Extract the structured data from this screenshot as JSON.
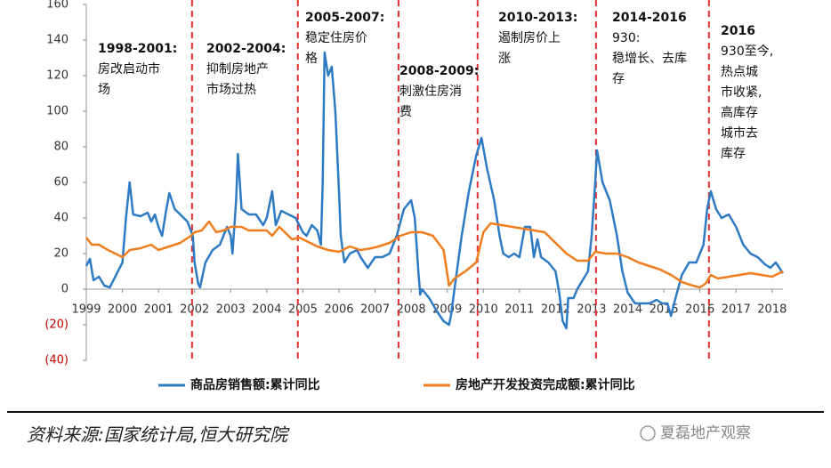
{
  "chart_data": {
    "type": "line",
    "xlim": [
      1999,
      2018.3
    ],
    "ylim": [
      -40,
      160
    ],
    "xticks": [
      1999,
      2000,
      2001,
      2002,
      2003,
      2004,
      2005,
      2006,
      2007,
      2008,
      2009,
      2010,
      2011,
      2012,
      2013,
      2014,
      2015,
      2016,
      2017,
      2018
    ],
    "yticks": [
      {
        "value": -40,
        "label": "(40)"
      },
      {
        "value": -20,
        "label": "(20)"
      },
      0,
      20,
      40,
      60,
      80,
      100,
      120,
      140,
      160
    ],
    "negative_label_color": "#c00000",
    "dividers": [
      2001.93,
      2004.86,
      2007.65,
      2009.84,
      2013.12,
      2016.25
    ],
    "divider_color": "#e03030",
    "annotations": [
      {
        "title": "1998-2001:",
        "lines": [
          "房改启动市",
          "场"
        ]
      },
      {
        "title": "2002-2004:",
        "lines": [
          "抑制房地产",
          "市场过热"
        ]
      },
      {
        "title": "2005-2007:",
        "lines": [
          "稳定住房价",
          "格"
        ]
      },
      {
        "title": "2008-2009:",
        "lines": [
          "刺激住房消",
          "费"
        ]
      },
      {
        "title": "2010-2013:",
        "lines": [
          "遏制房价上",
          "涨"
        ]
      },
      {
        "title": "2014-2016",
        "lines": [
          "930:",
          "稳增长、去库",
          "存"
        ]
      },
      {
        "title": "2016",
        "lines": [
          "930至今,",
          "热点城",
          "市收紧,",
          "高库存",
          "城市去",
          "库存"
        ]
      }
    ],
    "series": [
      {
        "name": "商品房销售额:累计同比",
        "color": "#2e7bc4",
        "x": [
          1999.0,
          1999.1,
          1999.2,
          1999.35,
          1999.5,
          1999.65,
          1999.8,
          2000.0,
          2000.1,
          2000.2,
          2000.3,
          2000.5,
          2000.7,
          2000.8,
          2000.9,
          2001.0,
          2001.1,
          2001.2,
          2001.3,
          2001.45,
          2001.6,
          2001.8,
          2001.95,
          2002.0,
          2002.1,
          2002.15,
          2002.3,
          2002.5,
          2002.7,
          2002.9,
          2003.0,
          2003.05,
          2003.15,
          2003.2,
          2003.3,
          2003.5,
          2003.7,
          2003.9,
          2004.0,
          2004.15,
          2004.25,
          2004.4,
          2004.6,
          2004.8,
          2005.0,
          2005.1,
          2005.25,
          2005.4,
          2005.5,
          2005.55,
          2005.6,
          2005.7,
          2005.8,
          2005.9,
          2006.0,
          2006.05,
          2006.15,
          2006.3,
          2006.5,
          2006.6,
          2006.8,
          2007.0,
          2007.2,
          2007.4,
          2007.6,
          2007.8,
          2008.0,
          2008.1,
          2008.2,
          2008.25,
          2008.3,
          2008.5,
          2008.7,
          2008.9,
          2009.05,
          2009.1,
          2009.2,
          2009.4,
          2009.6,
          2009.8,
          2009.95,
          2010.1,
          2010.3,
          2010.45,
          2010.55,
          2010.7,
          2010.85,
          2011.0,
          2011.15,
          2011.3,
          2011.4,
          2011.5,
          2011.6,
          2011.8,
          2012.0,
          2012.1,
          2012.2,
          2012.3,
          2012.35,
          2012.5,
          2012.6,
          2012.75,
          2012.9,
          2013.0,
          2013.1,
          2013.15,
          2013.3,
          2013.5,
          2013.7,
          2013.85,
          2014.0,
          2014.2,
          2014.4,
          2014.6,
          2014.8,
          2014.95,
          2015.1,
          2015.2,
          2015.35,
          2015.5,
          2015.7,
          2015.9,
          2016.1,
          2016.2,
          2016.3,
          2016.45,
          2016.6,
          2016.8,
          2017.0,
          2017.2,
          2017.4,
          2017.6,
          2017.8,
          2017.95,
          2018.1,
          2018.2,
          2018.3
        ],
        "values": [
          13,
          17,
          5,
          7,
          2,
          1,
          7,
          15,
          40,
          60,
          42,
          41,
          43,
          38,
          42,
          35,
          30,
          43,
          54,
          45,
          42,
          38,
          30,
          15,
          3,
          1,
          15,
          22,
          25,
          35,
          30,
          20,
          50,
          76,
          45,
          42,
          42,
          36,
          40,
          55,
          36,
          44,
          42,
          40,
          32,
          30,
          36,
          33,
          25,
          60,
          133,
          120,
          125,
          100,
          55,
          30,
          15,
          20,
          22,
          18,
          12,
          18,
          18,
          20,
          30,
          45,
          50,
          40,
          10,
          -3,
          0,
          -5,
          -12,
          -18,
          -20,
          -15,
          0,
          30,
          55,
          75,
          85,
          68,
          50,
          30,
          20,
          18,
          20,
          18,
          35,
          35,
          18,
          28,
          18,
          15,
          10,
          -2,
          -18,
          -22,
          -5,
          -5,
          0,
          5,
          10,
          30,
          60,
          78,
          60,
          50,
          30,
          10,
          -2,
          -8,
          -8,
          -8,
          -6,
          -8,
          -8,
          -15,
          -3,
          8,
          15,
          15,
          25,
          45,
          55,
          45,
          40,
          42,
          35,
          25,
          20,
          18,
          14,
          12,
          15,
          12,
          9
        ]
      },
      {
        "name": "房地产开发投资完成额:累计同比",
        "color": "#f07d1e",
        "x": [
          1999.0,
          1999.15,
          1999.35,
          1999.6,
          1999.8,
          2000.0,
          2000.2,
          2000.5,
          2000.8,
          2001.0,
          2001.3,
          2001.6,
          2001.9,
          2002.0,
          2002.2,
          2002.4,
          2002.6,
          2002.8,
          2003.0,
          2003.3,
          2003.5,
          2003.8,
          2004.0,
          2004.15,
          2004.35,
          2004.5,
          2004.7,
          2004.9,
          2005.1,
          2005.4,
          2005.7,
          2006.0,
          2006.3,
          2006.6,
          2006.9,
          2007.1,
          2007.4,
          2007.7,
          2008.0,
          2008.3,
          2008.6,
          2008.9,
          2009.05,
          2009.2,
          2009.5,
          2009.8,
          2010.0,
          2010.2,
          2010.5,
          2010.8,
          2011.1,
          2011.4,
          2011.7,
          2012.0,
          2012.3,
          2012.6,
          2012.9,
          2013.1,
          2013.4,
          2013.7,
          2014.0,
          2014.3,
          2014.6,
          2014.9,
          2015.2,
          2015.5,
          2015.8,
          2016.0,
          2016.15,
          2016.3,
          2016.5,
          2016.8,
          2017.1,
          2017.4,
          2017.7,
          2018.0,
          2018.3
        ],
        "values": [
          29,
          25,
          25,
          22,
          20,
          18,
          22,
          23,
          25,
          22,
          24,
          26,
          30,
          32,
          33,
          38,
          32,
          33,
          35,
          35,
          33,
          33,
          33,
          30,
          35,
          32,
          28,
          29,
          27,
          24,
          22,
          21,
          24,
          22,
          23,
          24,
          26,
          30,
          32,
          32,
          30,
          22,
          2,
          6,
          10,
          15,
          32,
          37,
          36,
          35,
          34,
          33,
          32,
          26,
          20,
          16,
          16,
          21,
          20,
          20,
          18,
          15,
          13,
          11,
          8,
          4,
          2,
          1,
          3,
          8,
          6,
          7,
          8,
          9,
          8,
          7,
          10
        ]
      }
    ]
  },
  "source": "资料来源:国家统计局,恒大研究院",
  "watermark": "夏磊地产观察"
}
